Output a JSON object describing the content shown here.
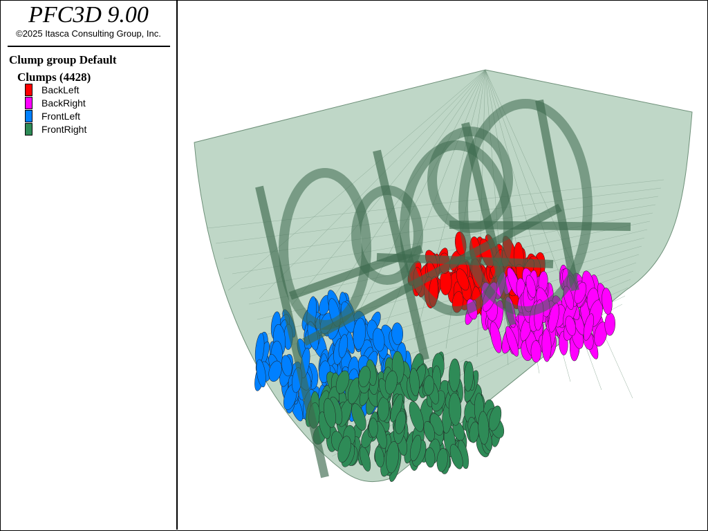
{
  "legend": {
    "title": "PFC3D 9.00",
    "copyright": "©2025 Itasca Consulting Group, Inc.",
    "group_heading": "Clump group Default",
    "clumps_heading": "Clumps (4428)",
    "items": [
      {
        "label": "BackLeft",
        "color": "#ff0000"
      },
      {
        "label": "BackRight",
        "color": "#ff00ff"
      },
      {
        "label": "FrontLeft",
        "color": "#0080ff"
      },
      {
        "label": "FrontRight",
        "color": "#2e8b57"
      }
    ]
  },
  "view": {
    "container_color": "#a9c9b4",
    "tube_color": "#3e6a4f"
  }
}
